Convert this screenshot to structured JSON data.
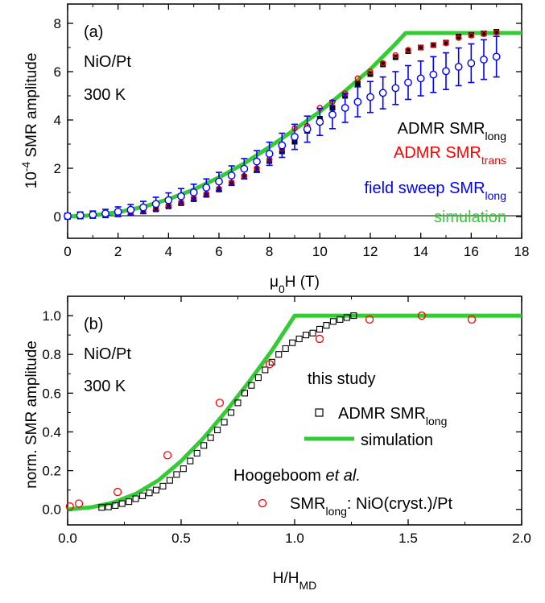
{
  "chart_data": [
    {
      "panel": "(a)",
      "type": "scatter",
      "xlabel": "μ0H (T)",
      "ylabel": "10-4 SMR amplitude",
      "xlim": [
        0,
        18
      ],
      "ylim": [
        -0.9,
        8.8
      ],
      "xticks": [
        "0",
        "2",
        "4",
        "6",
        "8",
        "10",
        "12",
        "14",
        "16",
        "18"
      ],
      "yticks": [
        "0",
        "2",
        "4",
        "6",
        "8"
      ],
      "annotations": [
        "(a)",
        "NiO/Pt",
        "300 K"
      ],
      "legend_position": "right",
      "series": [
        {
          "name": "ADMR SMRlong",
          "color": "#000000",
          "marker": "square",
          "x": [
            0,
            0.5,
            1,
            1.5,
            2,
            2.5,
            3,
            3.5,
            4,
            4.5,
            5,
            5.5,
            6,
            6.5,
            7,
            7.5,
            8,
            8.5,
            9,
            9.5,
            10,
            10.5,
            11,
            11.5,
            12,
            12.5,
            13,
            13.5,
            14,
            14.5,
            15,
            15.5,
            16,
            16.5,
            17
          ],
          "y": [
            0,
            0.02,
            0.04,
            0.08,
            0.11,
            0.16,
            0.21,
            0.3,
            0.42,
            0.55,
            0.72,
            0.9,
            1.12,
            1.38,
            1.65,
            1.95,
            2.3,
            2.7,
            3.1,
            3.55,
            4.05,
            4.5,
            5.0,
            5.5,
            5.9,
            6.3,
            6.6,
            6.85,
            7.0,
            7.1,
            7.2,
            7.45,
            7.52,
            7.58,
            7.65
          ]
        },
        {
          "name": "ADMR SMRtrans",
          "color": "#ff0000",
          "marker": "circle",
          "x": [
            0,
            0.5,
            1,
            1.5,
            2,
            2.5,
            3,
            3.5,
            4,
            4.5,
            5,
            5.5,
            6,
            6.5,
            7,
            7.5,
            8,
            8.5,
            9,
            9.5,
            10,
            10.5,
            11,
            11.5,
            12,
            12.5,
            13,
            13.5,
            14,
            14.5,
            15,
            15.5,
            16,
            16.5,
            17
          ],
          "y": [
            0,
            0.02,
            0.05,
            0.08,
            0.12,
            0.17,
            0.23,
            0.33,
            0.45,
            0.58,
            0.75,
            0.93,
            1.15,
            1.4,
            1.68,
            2.0,
            2.38,
            2.8,
            3.65,
            3.75,
            4.5,
            4.75,
            5.1,
            5.72,
            6.0,
            6.35,
            6.68,
            6.9,
            7.0,
            7.1,
            7.18,
            7.4,
            7.5,
            7.56,
            7.62
          ]
        },
        {
          "name": "field sweep SMRlong",
          "color": "#0000ff",
          "marker": "open-circle-errorbar",
          "x": [
            0,
            0.5,
            1,
            1.5,
            2,
            2.5,
            3,
            3.5,
            4,
            4.5,
            5,
            5.5,
            6,
            6.5,
            7,
            7.5,
            8,
            8.5,
            9,
            9.5,
            10,
            10.5,
            11,
            11.5,
            12,
            12.5,
            13,
            13.5,
            14,
            14.5,
            15,
            15.5,
            16,
            16.5,
            17
          ],
          "y": [
            0.02,
            0.05,
            0.08,
            0.13,
            0.2,
            0.28,
            0.38,
            0.52,
            0.68,
            0.84,
            1.0,
            1.2,
            1.45,
            1.7,
            1.98,
            2.28,
            2.6,
            2.95,
            3.3,
            3.62,
            3.92,
            4.22,
            4.5,
            4.75,
            4.95,
            5.12,
            5.32,
            5.55,
            5.72,
            5.88,
            6.02,
            6.2,
            6.35,
            6.5,
            6.62
          ],
          "err": [
            0.12,
            0.14,
            0.15,
            0.17,
            0.2,
            0.22,
            0.25,
            0.28,
            0.3,
            0.32,
            0.34,
            0.36,
            0.38,
            0.4,
            0.42,
            0.45,
            0.48,
            0.5,
            0.52,
            0.54,
            0.56,
            0.58,
            0.6,
            0.62,
            0.64,
            0.66,
            0.68,
            0.7,
            0.72,
            0.74,
            0.76,
            0.78,
            0.8,
            0.82,
            0.84
          ]
        },
        {
          "name": "simulation",
          "color": "#33cc33",
          "marker": "line",
          "x": [
            0,
            1,
            2,
            3,
            4,
            5,
            6,
            7,
            8,
            9,
            10,
            11,
            12,
            13,
            13.4,
            18
          ],
          "y": [
            0,
            0.05,
            0.18,
            0.4,
            0.72,
            1.12,
            1.62,
            2.2,
            2.88,
            3.6,
            4.35,
            5.2,
            6.1,
            7.15,
            7.6,
            7.6
          ]
        }
      ]
    },
    {
      "panel": "(b)",
      "type": "scatter",
      "xlabel": "H/HMD",
      "ylabel": "norm. SMR amplitude",
      "xlim": [
        0,
        2.0
      ],
      "ylim": [
        -0.08,
        1.1
      ],
      "xticks": [
        "0.0",
        "0.5",
        "1.0",
        "1.5",
        "2.0"
      ],
      "yticks": [
        "0.0",
        "0.2",
        "0.4",
        "0.6",
        "0.8",
        "1.0"
      ],
      "annotations": [
        "(b)",
        "NiO/Pt",
        "300 K"
      ],
      "legend_title_1": "this study",
      "legend_title_2": "Hoogeboom et al.",
      "legend_position": "right",
      "series": [
        {
          "name": "ADMR SMRlong",
          "color": "#000000",
          "marker": "open-square",
          "x": [
            0.15,
            0.18,
            0.21,
            0.24,
            0.27,
            0.3,
            0.33,
            0.36,
            0.39,
            0.42,
            0.45,
            0.48,
            0.51,
            0.54,
            0.57,
            0.6,
            0.63,
            0.66,
            0.69,
            0.72,
            0.75,
            0.78,
            0.81,
            0.84,
            0.87,
            0.9,
            0.93,
            0.96,
            0.99,
            1.02,
            1.05,
            1.08,
            1.11,
            1.14,
            1.17,
            1.2,
            1.23,
            1.26
          ],
          "y": [
            0.01,
            0.013,
            0.02,
            0.03,
            0.04,
            0.055,
            0.07,
            0.085,
            0.1,
            0.12,
            0.15,
            0.18,
            0.21,
            0.25,
            0.29,
            0.33,
            0.37,
            0.41,
            0.45,
            0.5,
            0.55,
            0.6,
            0.64,
            0.68,
            0.72,
            0.76,
            0.8,
            0.83,
            0.86,
            0.88,
            0.9,
            0.91,
            0.93,
            0.95,
            0.97,
            0.98,
            0.99,
            1.0
          ]
        },
        {
          "name": "simulation",
          "color": "#33cc33",
          "marker": "line",
          "x": [
            0,
            0.1,
            0.2,
            0.3,
            0.4,
            0.5,
            0.6,
            0.7,
            0.8,
            0.9,
            1.0,
            2.0
          ],
          "y": [
            0,
            0.01,
            0.035,
            0.08,
            0.15,
            0.25,
            0.37,
            0.51,
            0.66,
            0.82,
            1.0,
            1.0
          ]
        },
        {
          "name": "SMRlong: NiO(cryst.)/Pt",
          "color": "#ff0000",
          "marker": "open-circle",
          "x": [
            0.01,
            0.05,
            0.22,
            0.44,
            0.67,
            0.89,
            1.11,
            1.33,
            1.56,
            1.78
          ],
          "y": [
            0.015,
            0.03,
            0.09,
            0.28,
            0.55,
            0.75,
            0.88,
            0.98,
            1.0,
            0.98
          ]
        }
      ]
    }
  ]
}
